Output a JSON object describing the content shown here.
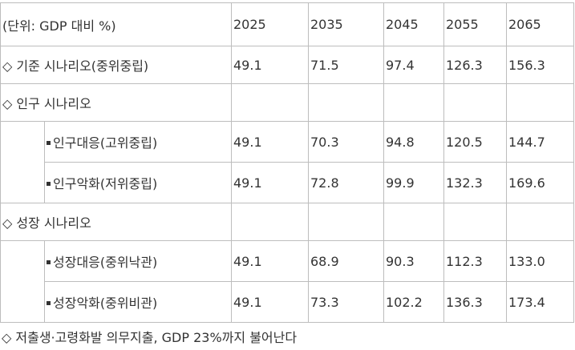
{
  "table": {
    "header": [
      "(단위: GDP 대비 %)",
      "2025",
      "2035",
      "2045",
      "2055",
      "2065"
    ],
    "rows": [
      {
        "label": "◇ 기준 시나리오(중위중립)",
        "cells": [
          "49.1",
          "71.5",
          "97.4",
          "126.3",
          "156.3"
        ]
      },
      {
        "label": "◇ 인구 시나리오",
        "children": [
          {
            "label": "인구대응(고위중립)",
            "cells": [
              "49.1",
              "70.3",
              "94.8",
              "120.5",
              "144.7"
            ]
          },
          {
            "label": "인구악화(저위중립)",
            "cells": [
              "49.1",
              "72.8",
              "99.9",
              "132.3",
              "169.6"
            ]
          }
        ]
      },
      {
        "label": "◇ 성장 시나리오",
        "children": [
          {
            "label": "성장대응(중위낙관)",
            "cells": [
              "49.1",
              "68.9",
              "90.3",
              "112.3",
              "133.0"
            ]
          },
          {
            "label": "성장악화(중위비관)",
            "cells": [
              "49.1",
              "73.3",
              "102.2",
              "136.3",
              "173.4"
            ]
          }
        ]
      }
    ]
  },
  "caption": "◇ 저출생·고령화발 의무지출, GDP 23%까지 불어난다"
}
